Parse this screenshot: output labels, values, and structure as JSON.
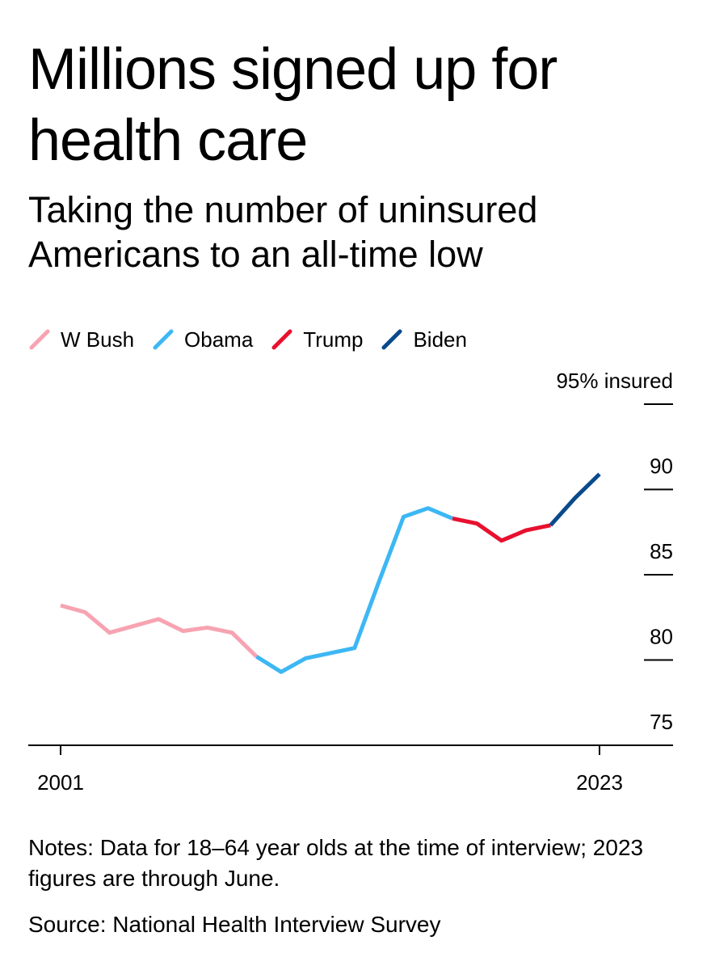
{
  "title": "Millions signed up for health care",
  "subtitle": "Taking the number of uninsured Americans to an all-time low",
  "notes": "Notes: Data for 18–64 year olds at the time of interview; 2023 figures are through June.",
  "source": "Source: National Health Interview Survey",
  "legend": [
    {
      "name": "W Bush",
      "color": "#f7a3b2"
    },
    {
      "name": "Obama",
      "color": "#3db7f4"
    },
    {
      "name": "Trump",
      "color": "#e8102e"
    },
    {
      "name": "Biden",
      "color": "#0a4a8c"
    }
  ],
  "chart_data": {
    "type": "line",
    "title": "Millions signed up for health care",
    "subtitle": "Taking the number of uninsured Americans to an all-time low",
    "xlabel": "",
    "ylabel": "",
    "x_ticks": [
      "2001",
      "2023"
    ],
    "y_ticks": [
      "95% insured",
      "90",
      "85",
      "80",
      "75"
    ],
    "ylim": [
      75,
      95
    ],
    "xlim": [
      2001,
      2023
    ],
    "y_axis_position": "right",
    "grid": false,
    "legend_position": "top-left",
    "series": [
      {
        "name": "W Bush",
        "color": "#f7a3b2",
        "x": [
          2001,
          2002,
          2003,
          2004,
          2005,
          2006,
          2007,
          2008,
          2009
        ],
        "y": [
          83.2,
          82.8,
          81.6,
          82.0,
          82.4,
          81.7,
          81.9,
          81.6,
          80.2
        ]
      },
      {
        "name": "Obama",
        "color": "#3db7f4",
        "x": [
          2009,
          2010,
          2011,
          2012,
          2013,
          2014,
          2015,
          2016,
          2017
        ],
        "y": [
          80.2,
          79.3,
          80.1,
          80.4,
          80.7,
          84.6,
          88.4,
          88.9,
          88.3
        ]
      },
      {
        "name": "Trump",
        "color": "#e8102e",
        "x": [
          2017,
          2018,
          2019,
          2020,
          2021
        ],
        "y": [
          88.3,
          88.0,
          87.0,
          87.6,
          87.9
        ]
      },
      {
        "name": "Biden",
        "color": "#0a4a8c",
        "x": [
          2021,
          2022,
          2023
        ],
        "y": [
          87.9,
          89.5,
          90.9
        ]
      }
    ]
  }
}
